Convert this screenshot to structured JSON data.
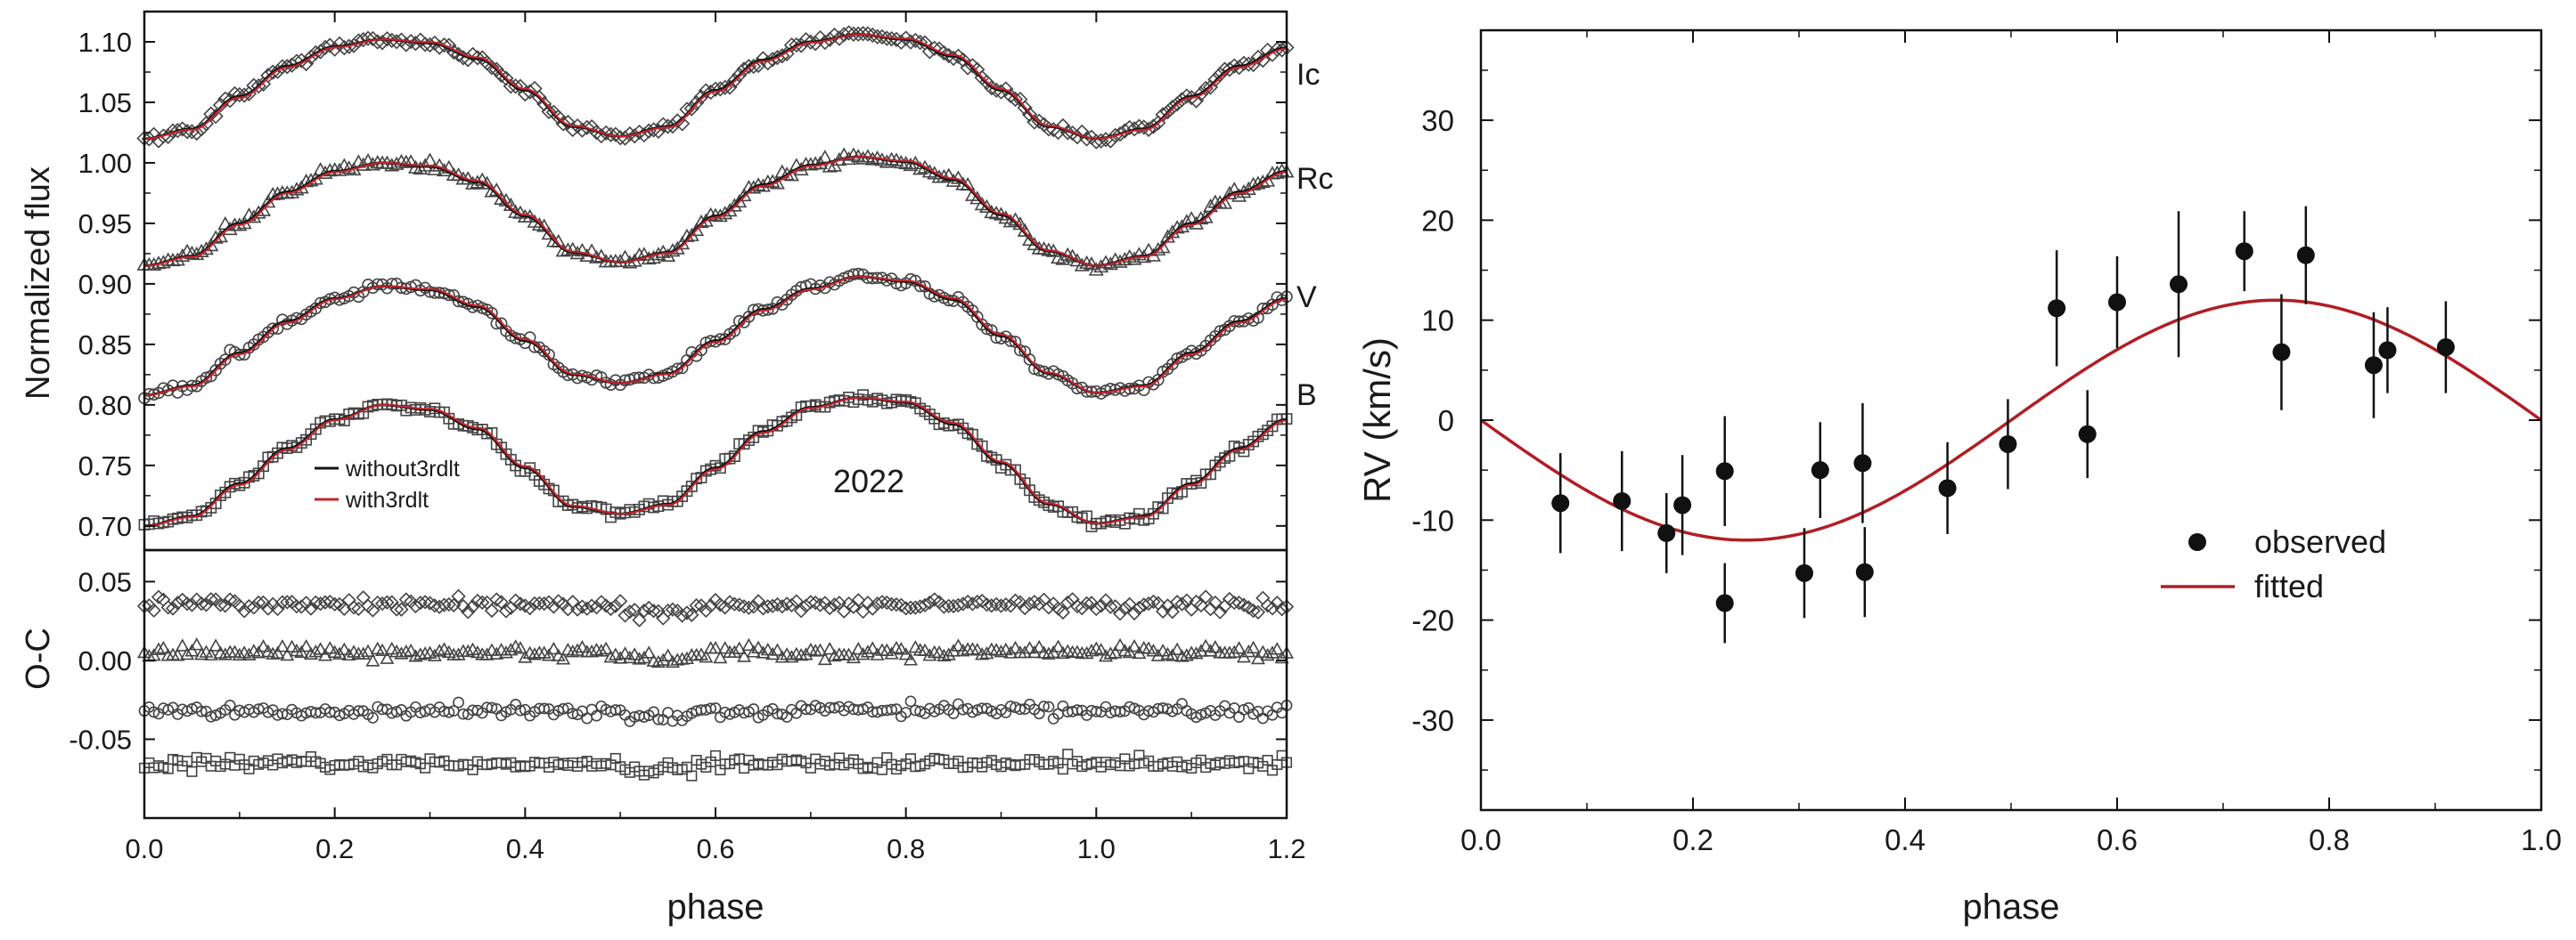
{
  "chart_data": [
    {
      "type": "line",
      "panel": "light curves",
      "xlabel": "",
      "ylabel": "Normalized flux",
      "xlim": [
        0.0,
        1.2
      ],
      "ylim": [
        0.68,
        1.125
      ],
      "xticks": [
        "0.0",
        "0.2",
        "0.4",
        "0.6",
        "0.8",
        "1.0",
        "1.2"
      ],
      "yticks": [
        "0.70",
        "0.75",
        "0.80",
        "0.85",
        "0.90",
        "0.95",
        "1.00",
        "1.05",
        "1.10"
      ],
      "annotation": "2022",
      "legend": {
        "position": "bottom-left",
        "entries": [
          {
            "label": "without3rdlt",
            "color": "#111111"
          },
          {
            "label": "with3rdlt",
            "color": "#c0262d"
          }
        ]
      },
      "series": [
        {
          "name": "Ic",
          "marker": "diamond",
          "phase": [
            0.0,
            0.05,
            0.1,
            0.15,
            0.2,
            0.25,
            0.3,
            0.35,
            0.4,
            0.45,
            0.5,
            0.55,
            0.6,
            0.65,
            0.7,
            0.75,
            0.8,
            0.85,
            0.9,
            0.95,
            1.0,
            1.05,
            1.1,
            1.15,
            1.2
          ],
          "flux": [
            1.02,
            1.028,
            1.055,
            1.08,
            1.096,
            1.102,
            1.099,
            1.086,
            1.06,
            1.03,
            1.022,
            1.03,
            1.06,
            1.085,
            1.1,
            1.106,
            1.102,
            1.088,
            1.06,
            1.03,
            1.02,
            1.028,
            1.055,
            1.08,
            1.095
          ]
        },
        {
          "name": "Rc",
          "marker": "triangle",
          "phase": [
            0.0,
            0.05,
            0.1,
            0.15,
            0.2,
            0.25,
            0.3,
            0.35,
            0.4,
            0.45,
            0.5,
            0.55,
            0.6,
            0.65,
            0.7,
            0.75,
            0.8,
            0.85,
            0.9,
            0.95,
            1.0,
            1.05,
            1.1,
            1.15,
            1.2
          ],
          "flux": [
            0.915,
            0.923,
            0.95,
            0.976,
            0.993,
            1.0,
            0.997,
            0.984,
            0.956,
            0.926,
            0.918,
            0.926,
            0.956,
            0.982,
            0.998,
            1.005,
            1.001,
            0.986,
            0.957,
            0.927,
            0.915,
            0.923,
            0.95,
            0.976,
            0.993
          ]
        },
        {
          "name": "V",
          "marker": "circle",
          "phase": [
            0.0,
            0.05,
            0.1,
            0.15,
            0.2,
            0.25,
            0.3,
            0.35,
            0.4,
            0.45,
            0.5,
            0.55,
            0.6,
            0.65,
            0.7,
            0.75,
            0.8,
            0.85,
            0.9,
            0.95,
            1.0,
            1.05,
            1.1,
            1.15,
            1.2
          ],
          "flux": [
            0.808,
            0.816,
            0.843,
            0.869,
            0.888,
            0.898,
            0.895,
            0.881,
            0.853,
            0.825,
            0.818,
            0.826,
            0.853,
            0.879,
            0.896,
            0.906,
            0.902,
            0.887,
            0.857,
            0.826,
            0.81,
            0.816,
            0.843,
            0.869,
            0.888
          ]
        },
        {
          "name": "B",
          "marker": "square",
          "phase": [
            0.0,
            0.05,
            0.1,
            0.15,
            0.2,
            0.25,
            0.3,
            0.35,
            0.4,
            0.45,
            0.5,
            0.55,
            0.6,
            0.65,
            0.7,
            0.75,
            0.8,
            0.85,
            0.9,
            0.95,
            1.0,
            1.05,
            1.1,
            1.15,
            1.2
          ],
          "flux": [
            0.7,
            0.708,
            0.735,
            0.764,
            0.788,
            0.8,
            0.796,
            0.78,
            0.748,
            0.716,
            0.71,
            0.718,
            0.748,
            0.778,
            0.798,
            0.806,
            0.802,
            0.784,
            0.752,
            0.718,
            0.702,
            0.708,
            0.735,
            0.764,
            0.788
          ]
        }
      ]
    },
    {
      "type": "scatter",
      "panel": "residuals",
      "xlabel": "phase",
      "ylabel": "O-C",
      "xlim": [
        0.0,
        1.2
      ],
      "ylim": [
        -0.1,
        0.07
      ],
      "xticks": [
        "0.0",
        "0.2",
        "0.4",
        "0.6",
        "0.8",
        "1.0",
        "1.2"
      ],
      "yticks": [
        "0.05",
        "0.00",
        "-0.05"
      ],
      "series": [
        {
          "name": "Ic",
          "marker": "diamond",
          "level": 0.035,
          "scatter": 0.004
        },
        {
          "name": "Rc",
          "marker": "triangle",
          "level": 0.005,
          "scatter": 0.004
        },
        {
          "name": "V",
          "marker": "circle",
          "level": -0.032,
          "scatter": 0.004
        },
        {
          "name": "B",
          "marker": "square",
          "level": -0.065,
          "scatter": 0.004
        }
      ]
    },
    {
      "type": "scatter",
      "panel": "radial velocity",
      "xlabel": "phase",
      "ylabel": "RV (km/s)",
      "xlim": [
        0.0,
        1.0
      ],
      "ylim": [
        -39,
        39
      ],
      "xticks": [
        "0.0",
        "0.2",
        "0.4",
        "0.6",
        "0.8",
        "1.0"
      ],
      "yticks": [
        "-30",
        "-20",
        "-10",
        "0",
        "10",
        "20",
        "30"
      ],
      "legend": {
        "position": "lower-right",
        "entries": [
          {
            "label": "observed",
            "color": "#111111"
          },
          {
            "label": "fitted",
            "color": "#b01e24"
          }
        ]
      },
      "fit": {
        "amplitude": 12,
        "period_phase": 1.0
      },
      "observed": [
        {
          "x": 0.075,
          "y": -8.3,
          "err": 5.0
        },
        {
          "x": 0.133,
          "y": -8.1,
          "err": 5.0
        },
        {
          "x": 0.175,
          "y": -11.3,
          "err": 4.0
        },
        {
          "x": 0.19,
          "y": -8.5,
          "err": 5.0
        },
        {
          "x": 0.23,
          "y": -5.1,
          "err": 5.5
        },
        {
          "x": 0.23,
          "y": -18.3,
          "err": 4.0
        },
        {
          "x": 0.305,
          "y": -15.3,
          "err": 4.5
        },
        {
          "x": 0.32,
          "y": -5.0,
          "err": 4.8
        },
        {
          "x": 0.36,
          "y": -4.3,
          "err": 6.0
        },
        {
          "x": 0.362,
          "y": -15.2,
          "err": 4.5
        },
        {
          "x": 0.44,
          "y": -6.8,
          "err": 4.6
        },
        {
          "x": 0.497,
          "y": -2.4,
          "err": 4.5
        },
        {
          "x": 0.543,
          "y": 11.2,
          "err": 5.8
        },
        {
          "x": 0.572,
          "y": -1.4,
          "err": 4.4
        },
        {
          "x": 0.6,
          "y": 11.8,
          "err": 4.6
        },
        {
          "x": 0.658,
          "y": 13.6,
          "err": 7.3
        },
        {
          "x": 0.72,
          "y": 16.9,
          "err": 4.0
        },
        {
          "x": 0.755,
          "y": 6.8,
          "err": 5.8
        },
        {
          "x": 0.778,
          "y": 16.5,
          "err": 4.9
        },
        {
          "x": 0.842,
          "y": 5.5,
          "err": 5.3
        },
        {
          "x": 0.855,
          "y": 7.0,
          "err": 4.3
        },
        {
          "x": 0.91,
          "y": 7.3,
          "err": 4.6
        }
      ]
    }
  ]
}
